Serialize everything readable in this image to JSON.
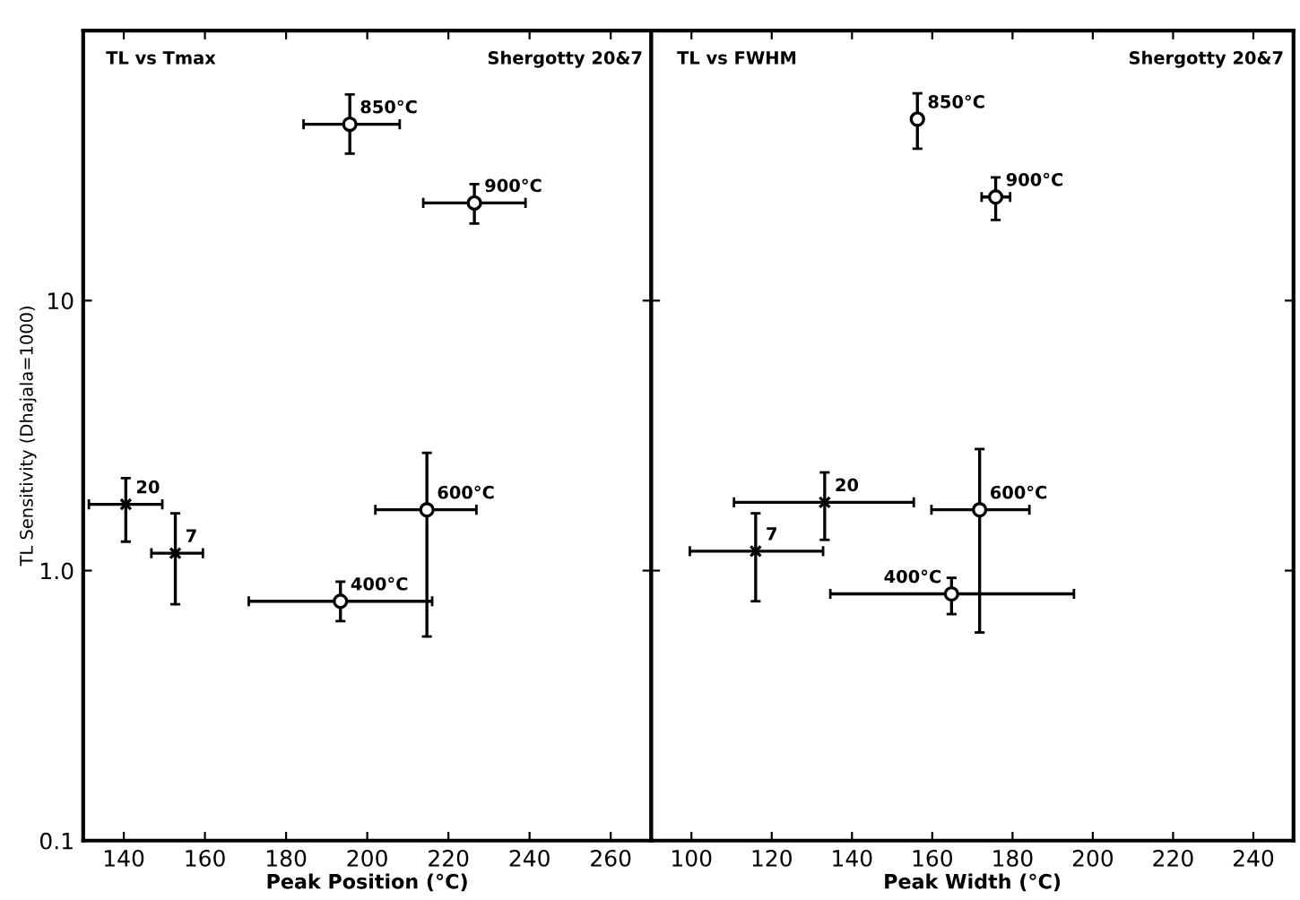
{
  "chart_data": [
    {
      "type": "scatter",
      "title": "TL vs Tmax",
      "subtitle": "Shergotty 20&7",
      "xlabel": "Peak Position (°C)",
      "ylabel": "TL Sensitivity (Dhajala=1000)",
      "log": "y",
      "xlim": [
        130,
        270
      ],
      "xticks": [
        140,
        160,
        180,
        200,
        220,
        240,
        260
      ],
      "ylim": [
        0.1,
        100
      ],
      "yticks": [
        {
          "value": 0.1,
          "label": "0.1"
        },
        {
          "value": 1,
          "label": "1.0"
        },
        {
          "value": 10,
          "label": "10"
        }
      ],
      "grid": false,
      "legend": false,
      "series": [
        {
          "color": "#000000",
          "marker": "circle",
          "x": [
            195.7,
            226.4,
            193.4,
            214.7
          ],
          "values": [
            45,
            23,
            0.77,
            1.68
          ],
          "errors": [
            [
              35,
              58
            ],
            [
              19.3,
              27
            ],
            [
              0.65,
              0.91
            ],
            [
              0.57,
              2.73
            ]
          ],
          "xerrors": [
            [
              184.3,
              208
            ],
            [
              213.8,
              239
            ],
            [
              170.8,
              216
            ],
            [
              202,
              226.9
            ]
          ]
        },
        {
          "color": "#000000",
          "marker": "cross",
          "x": [
            140.5,
            152.7
          ],
          "values": [
            1.76,
            1.16
          ],
          "errors": [
            [
              1.28,
              2.2
            ],
            [
              0.75,
              1.63
            ]
          ],
          "xerrors": [
            [
              131.4,
              149.5
            ],
            [
              146.8,
              159.5
            ]
          ]
        }
      ],
      "annotations": [
        {
          "text": "850°C",
          "x": 195.7,
          "y": 45
        },
        {
          "text": "900°C",
          "x": 226.4,
          "y": 23
        },
        {
          "text": "400°C",
          "x": 193.4,
          "y": 0.77
        },
        {
          "text": "600°C",
          "x": 214.7,
          "y": 1.68
        },
        {
          "text": "20",
          "x": 140.5,
          "y": 1.76
        },
        {
          "text": "7",
          "x": 152.7,
          "y": 1.16
        }
      ]
    },
    {
      "type": "scatter",
      "title": "TL vs FWHM",
      "subtitle": "Shergotty 20&7",
      "xlabel": "Peak Width (°C)",
      "log": "y",
      "xlim": [
        90,
        250
      ],
      "xticks": [
        100,
        120,
        140,
        160,
        180,
        200,
        220,
        240
      ],
      "ylim": [
        0.1,
        100
      ],
      "yticks": [
        {
          "value": 0.1,
          "label": null
        },
        {
          "value": 1,
          "label": null
        },
        {
          "value": 10,
          "label": null
        }
      ],
      "tick_labels": "x",
      "grid": false,
      "legend": false,
      "series": [
        {
          "color": "#000000",
          "marker": "circle",
          "x": [
            156.3,
            175.8,
            164.8,
            171.8
          ],
          "values": [
            47,
            24.2,
            0.82,
            1.68
          ],
          "errors": [
            [
              36.5,
              58.6
            ],
            [
              19.9,
              28.6
            ],
            [
              0.69,
              0.94
            ],
            [
              0.59,
              2.82
            ]
          ],
          "xerrors": [
            null,
            [
              172.3,
              179.4
            ],
            [
              134.6,
              195.3
            ],
            [
              159.8,
              184.2
            ]
          ]
        },
        {
          "color": "#000000",
          "marker": "cross",
          "x": [
            133.2,
            116
          ],
          "values": [
            1.79,
            1.18
          ],
          "errors": [
            [
              1.3,
              2.31
            ],
            [
              0.77,
              1.63
            ]
          ],
          "xerrors": [
            [
              110.6,
              155.4
            ],
            [
              99.6,
              132.8
            ]
          ]
        }
      ],
      "annotations": [
        {
          "text": "850°C",
          "x": 156.3,
          "y": 47
        },
        {
          "text": "900°C",
          "x": 175.8,
          "y": 24.2
        },
        {
          "text": "400°C",
          "x": 164.8,
          "y": 0.82
        },
        {
          "text": "600°C",
          "x": 171.8,
          "y": 1.68
        },
        {
          "text": "20",
          "x": 133.2,
          "y": 1.79
        },
        {
          "text": "7",
          "x": 116,
          "y": 1.18
        }
      ]
    }
  ]
}
